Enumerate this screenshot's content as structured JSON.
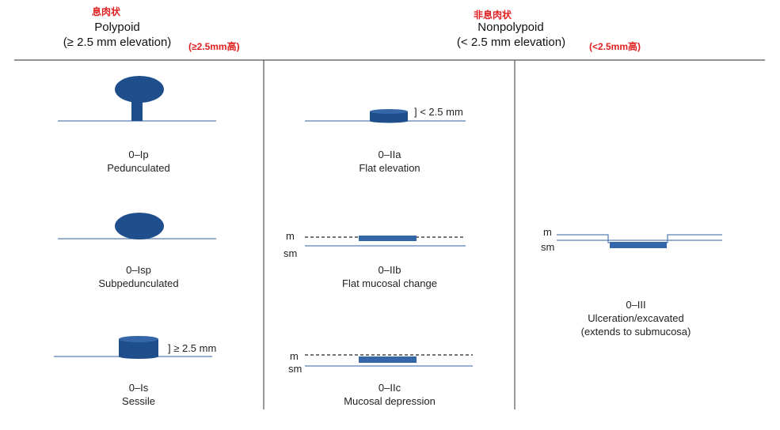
{
  "polypoid": {
    "cn": "息肉状",
    "title": "Polypoid",
    "subtitle": "(≥ 2.5 mm elevation)",
    "note": "(≥2.5mm高)"
  },
  "nonpolypoid": {
    "cn": "非息肉状",
    "title": "Nonpolypoid",
    "subtitle": "(< 2.5 mm elevation)",
    "note": "(<2.5mm高)"
  },
  "types": [
    {
      "code": "0–Ip",
      "name": "Pedunculated"
    },
    {
      "code": "0–Isp",
      "name": "Subpedunculated"
    },
    {
      "code": "0–Is",
      "name": "Sessile"
    },
    {
      "code": "0–IIa",
      "name": "Flat elevation"
    },
    {
      "code": "0–IIb",
      "name": "Flat mucosal change"
    },
    {
      "code": "0–IIc",
      "name": "Mucosal depression"
    },
    {
      "code": "0–III",
      "name": "Ulceration/excavated",
      "extra": "(extends to submucosa)"
    }
  ],
  "measures": {
    "lt": "] < 2.5 mm",
    "ge": "] ≥ 2.5 mm"
  },
  "layers": {
    "m": "m",
    "sm": "sm"
  },
  "colors": {
    "shape": "#1f4e8c",
    "line": "#5b7fb5",
    "rule": "#555555",
    "note": "#e02020"
  }
}
